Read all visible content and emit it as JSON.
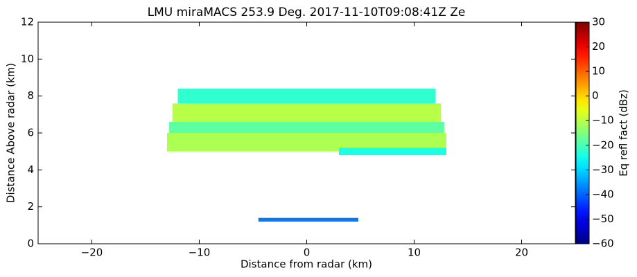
{
  "chart_data": {
    "type": "heatmap",
    "title": "LMU miraMACS 253.9 Deg. 2017-11-10T09:08:41Z  Ze",
    "x_label": "Distance from radar (km)",
    "y_label": "Distance Above radar  (km)",
    "xlim": [
      -25,
      25
    ],
    "ylim": [
      0,
      12
    ],
    "xticks": [
      {
        "value": -20,
        "label": "−20"
      },
      {
        "value": -10,
        "label": "−10"
      },
      0,
      10,
      20
    ],
    "yticks": [
      0,
      2,
      4,
      6,
      8,
      10,
      12
    ],
    "colormap": "jet",
    "colorbar": {
      "label": "Eq refl fact (dBz)",
      "lim": [
        -60,
        30
      ],
      "ticks": [
        {
          "value": -60,
          "label": "−60"
        },
        {
          "value": -50,
          "label": "−50"
        },
        {
          "value": -40,
          "label": "−40"
        },
        {
          "value": -30,
          "label": "−30"
        },
        {
          "value": -20,
          "label": "−20"
        },
        {
          "value": -10,
          "label": "−10"
        },
        0,
        10,
        20,
        30
      ]
    },
    "regions": [
      {
        "x0": -12,
        "x1": 12,
        "y0": 7.6,
        "y1": 8.4,
        "value": -22
      },
      {
        "x0": -12.5,
        "x1": 12.5,
        "y0": 6.6,
        "y1": 7.6,
        "value": -10
      },
      {
        "x0": -12.8,
        "x1": 12.8,
        "y0": 6.0,
        "y1": 6.6,
        "value": -18
      },
      {
        "x0": -13,
        "x1": 13,
        "y0": 5.0,
        "y1": 6.0,
        "value": -11
      },
      {
        "x0": 3,
        "x1": 13,
        "y0": 4.8,
        "y1": 5.2,
        "value": -24
      },
      {
        "x0": -4.5,
        "x1": 4.8,
        "y0": 1.2,
        "y1": 1.4,
        "value": -38
      }
    ]
  }
}
